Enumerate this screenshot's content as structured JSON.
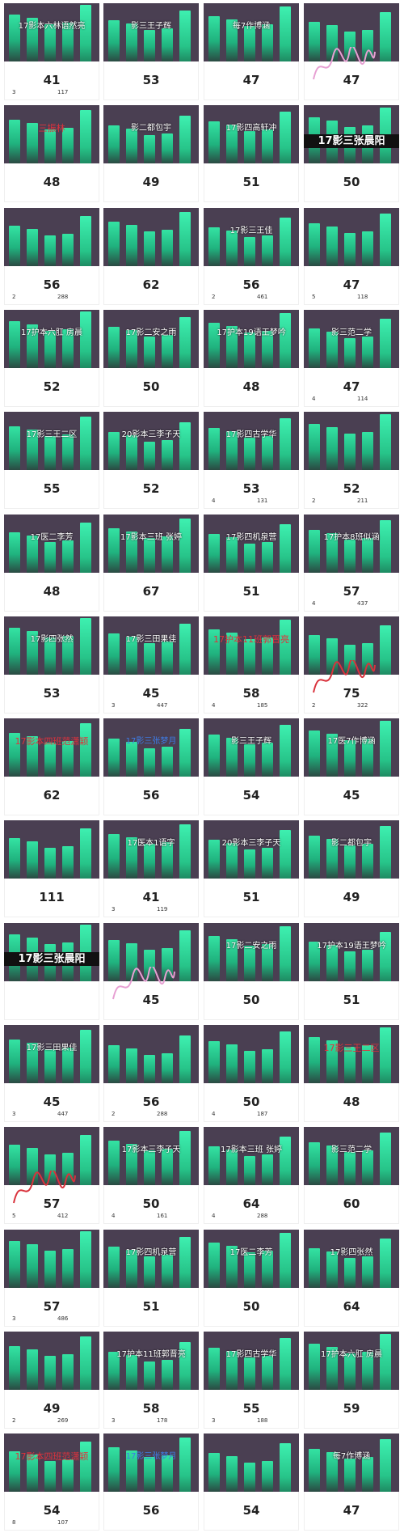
{
  "palette": {
    "chart_bg": "#4a3f52",
    "bar": "#27c489",
    "overlay_red": "#e0323c",
    "overlay_blue": "#3d7ce6",
    "overlay_pink": "#f0a8d8"
  },
  "cards": [
    {
      "value": "41",
      "caption": "17影本六林语然亮",
      "left": "3",
      "right": "117"
    },
    {
      "value": "53",
      "caption": "影三王子辉",
      "left": "",
      "right": ""
    },
    {
      "value": "47",
      "caption": "每7作博涵",
      "left": "",
      "right": ""
    },
    {
      "value": "47",
      "caption": "",
      "left": "",
      "right": ""
    },
    {
      "value": "48",
      "caption": "三振林",
      "left": "",
      "right": ""
    },
    {
      "value": "49",
      "caption": "影二都包宇",
      "left": "",
      "right": ""
    },
    {
      "value": "51",
      "caption": "17影四高轩冲",
      "left": "",
      "right": ""
    },
    {
      "value": "50",
      "caption": "17影三张晨阳",
      "left": "",
      "right": ""
    },
    {
      "value": "56",
      "caption": "",
      "left": "2",
      "right": "288"
    },
    {
      "value": "62",
      "caption": "",
      "left": "",
      "right": ""
    },
    {
      "value": "56",
      "caption": "17影三王佳",
      "left": "2",
      "right": "461"
    },
    {
      "value": "47",
      "caption": "",
      "left": "5",
      "right": "118"
    },
    {
      "value": "52",
      "caption": "17护本六肛 房晨",
      "left": "",
      "right": ""
    },
    {
      "value": "50",
      "caption": "17影二安之雨",
      "left": "",
      "right": ""
    },
    {
      "value": "48",
      "caption": "17护本19语王梦吟",
      "left": "",
      "right": ""
    },
    {
      "value": "47",
      "caption": "影三范二学",
      "left": "4",
      "right": "114"
    },
    {
      "value": "55",
      "caption": "17影三王二区",
      "left": "",
      "right": ""
    },
    {
      "value": "52",
      "caption": "20影本三李子天",
      "left": "",
      "right": ""
    },
    {
      "value": "53",
      "caption": "17影四古学华",
      "left": "4",
      "right": "131"
    },
    {
      "value": "52",
      "caption": "",
      "left": "2",
      "right": "211"
    },
    {
      "value": "48",
      "caption": "17医二李芳",
      "left": "",
      "right": ""
    },
    {
      "value": "67",
      "caption": "17影本三班 张婷",
      "left": "",
      "right": ""
    },
    {
      "value": "51",
      "caption": "17影四机泉营",
      "left": "",
      "right": ""
    },
    {
      "value": "57",
      "caption": "17护本8班似涵",
      "left": "4",
      "right": "437"
    },
    {
      "value": "53",
      "caption": "17影四张然",
      "left": "",
      "right": ""
    },
    {
      "value": "45",
      "caption": "17影三田果佳",
      "left": "3",
      "right": "447"
    },
    {
      "value": "58",
      "caption": "17护本11班郭晋亮",
      "left": "4",
      "right": "185"
    },
    {
      "value": "75",
      "caption": "",
      "left": "2",
      "right": "322"
    },
    {
      "value": "62",
      "caption": "17影本四班范潇颖",
      "left": "",
      "right": ""
    },
    {
      "value": "56",
      "caption": "17影三张梦月",
      "left": "",
      "right": ""
    },
    {
      "value": "54",
      "caption": "影三王子辉",
      "left": "",
      "right": ""
    },
    {
      "value": "45",
      "caption": "17医7作博涵",
      "left": "",
      "right": ""
    },
    {
      "value": "111",
      "caption": "",
      "left": "",
      "right": ""
    },
    {
      "value": "41",
      "caption": "17医本1语字",
      "left": "3",
      "right": "119"
    },
    {
      "value": "51",
      "caption": "20影本三李子天",
      "left": "",
      "right": ""
    },
    {
      "value": "49",
      "caption": "影二都包宇",
      "left": "",
      "right": ""
    },
    {
      "value": "",
      "caption": "17影三张晨阳",
      "left": "",
      "right": ""
    },
    {
      "value": "45",
      "caption": "",
      "left": "",
      "right": ""
    },
    {
      "value": "50",
      "caption": "17影二安之雨",
      "left": "",
      "right": ""
    },
    {
      "value": "51",
      "caption": "17护本19语王梦吟",
      "left": "",
      "right": ""
    },
    {
      "value": "45",
      "caption": "17影三田果佳",
      "left": "3",
      "right": "447"
    },
    {
      "value": "56",
      "caption": "",
      "left": "2",
      "right": "288"
    },
    {
      "value": "50",
      "caption": "",
      "left": "4",
      "right": "187"
    },
    {
      "value": "48",
      "caption": "17影三王二区",
      "left": "",
      "right": ""
    },
    {
      "value": "57",
      "caption": "",
      "left": "5",
      "right": "412"
    },
    {
      "value": "50",
      "caption": "17影本三李子天",
      "left": "4",
      "right": "161"
    },
    {
      "value": "64",
      "caption": "17影本三班 张婷",
      "left": "4",
      "right": "288"
    },
    {
      "value": "60",
      "caption": "影三范二学",
      "left": "",
      "right": ""
    },
    {
      "value": "57",
      "caption": "",
      "left": "3",
      "right": "486"
    },
    {
      "value": "51",
      "caption": "17影四机泉营",
      "left": "",
      "right": ""
    },
    {
      "value": "50",
      "caption": "17医二李芳",
      "left": "",
      "right": ""
    },
    {
      "value": "64",
      "caption": "17影四张然",
      "left": "",
      "right": ""
    },
    {
      "value": "49",
      "caption": "",
      "left": "2",
      "right": "269"
    },
    {
      "value": "58",
      "caption": "17护本11班郭晋亮",
      "left": "3",
      "right": "178"
    },
    {
      "value": "55",
      "caption": "17影四古学华",
      "left": "3",
      "right": "188"
    },
    {
      "value": "59",
      "caption": "17护本六肛 房晨",
      "left": "",
      "right": ""
    },
    {
      "value": "54",
      "caption": "17影本四班范潇颖",
      "left": "8",
      "right": "107"
    },
    {
      "value": "56",
      "caption": "17影三张梦月",
      "left": "",
      "right": ""
    },
    {
      "value": "54",
      "caption": "",
      "left": "",
      "right": ""
    },
    {
      "value": "47",
      "caption": "每7作博涵",
      "left": "",
      "right": ""
    }
  ]
}
